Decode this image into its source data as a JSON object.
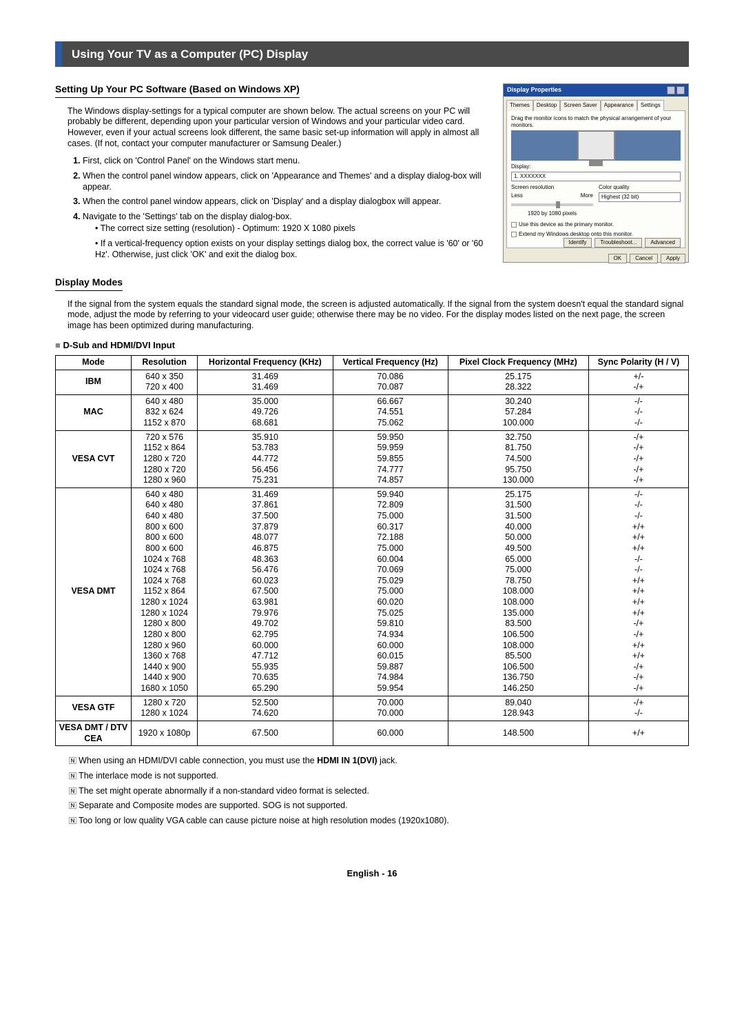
{
  "banner": "Using Your TV as a Computer (PC) Display",
  "section1": {
    "heading": "Setting Up Your PC Software (Based on Windows XP)",
    "intro": "The Windows display-settings for a typical computer are shown below. The actual screens on your PC will probably be different, depending upon your particular version of Windows and your particular video card. However, even if your actual screens look different, the same basic set-up information will apply in almost all cases. (If not, contact your computer manufacturer or Samsung Dealer.)",
    "steps": [
      "First, click on 'Control Panel' on the Windows start menu.",
      "When the control panel window appears, click on 'Appearance and Themes' and a display dialog-box will appear.",
      "When the control panel window appears, click on 'Display' and a display dialogbox will appear.",
      "Navigate to the 'Settings' tab on the display dialog-box."
    ],
    "sub_bullets": [
      "The correct size setting (resolution) - Optimum: 1920 X 1080 pixels",
      "If a vertical-frequency option exists on your display settings dialog box, the correct value is '60' or '60 Hz'. Otherwise, just click 'OK' and exit the dialog box."
    ]
  },
  "dialog": {
    "title": "Display Properties",
    "tabs": [
      "Themes",
      "Desktop",
      "Screen Saver",
      "Appearance",
      "Settings"
    ],
    "active_tab": "Settings",
    "drag_text": "Drag the monitor icons to match the physical arrangement of your monitors.",
    "display_label": "Display:",
    "display_val": "1. XXXXXXX",
    "res_label": "Screen resolution",
    "res_less": "Less",
    "res_more": "More",
    "res_val": "1920 by 1080 pixels",
    "quality_label": "Color quality",
    "quality_val": "Highest (32 bit)",
    "cb1": "Use this device as the primary monitor.",
    "cb2": "Extend my Windows desktop onto this monitor.",
    "btn_identify": "Identify",
    "btn_trouble": "Troubleshoot...",
    "btn_adv": "Advanced",
    "btn_ok": "OK",
    "btn_cancel": "Cancel",
    "btn_apply": "Apply"
  },
  "section2": {
    "heading": "Display Modes",
    "intro": "If the signal from the system equals the standard signal mode, the screen is adjusted automatically. If the signal from the system doesn't equal the standard signal mode, adjust the mode by referring to your videocard user guide; otherwise there may be no video. For the display modes listed on the next page, the screen image has been optimized during manufacturing.",
    "sub_head": "D-Sub and HDMI/DVI Input"
  },
  "table": {
    "headers": {
      "mode": "Mode",
      "res": "Resolution",
      "hfreq": "Horizontal Frequency (KHz)",
      "vfreq": "Vertical Frequency (Hz)",
      "pclk": "Pixel Clock Frequency (MHz)",
      "sync": "Sync Polarity (H / V)"
    },
    "rows": [
      {
        "mode": "IBM",
        "res": [
          "640 x 350",
          "720 x 400"
        ],
        "h": [
          "31.469",
          "31.469"
        ],
        "v": [
          "70.086",
          "70.087"
        ],
        "p": [
          "25.175",
          "28.322"
        ],
        "s": [
          "+/-",
          "-/+"
        ]
      },
      {
        "mode": "MAC",
        "res": [
          "640 x 480",
          "832 x 624",
          "1152 x 870"
        ],
        "h": [
          "35.000",
          "49.726",
          "68.681"
        ],
        "v": [
          "66.667",
          "74.551",
          "75.062"
        ],
        "p": [
          "30.240",
          "57.284",
          "100.000"
        ],
        "s": [
          "-/-",
          "-/-",
          "-/-"
        ]
      },
      {
        "mode": "VESA CVT",
        "res": [
          "720 x 576",
          "1152 x 864",
          "1280 x 720",
          "1280 x 720",
          "1280 x 960"
        ],
        "h": [
          "35.910",
          "53.783",
          "44.772",
          "56.456",
          "75.231"
        ],
        "v": [
          "59.950",
          "59.959",
          "59.855",
          "74.777",
          "74.857"
        ],
        "p": [
          "32.750",
          "81.750",
          "74.500",
          "95.750",
          "130.000"
        ],
        "s": [
          "-/+",
          "-/+",
          "-/+",
          "-/+",
          "-/+"
        ]
      },
      {
        "mode": "VESA DMT",
        "res": [
          "640 x 480",
          "640 x 480",
          "640 x 480",
          "800 x 600",
          "800 x 600",
          "800 x 600",
          "1024 x 768",
          "1024 x 768",
          "1024 x 768",
          "1152 x 864",
          "1280 x 1024",
          "1280 x 1024",
          "1280 x 800",
          "1280 x 800",
          "1280 x 960",
          "1360 x 768",
          "1440 x 900",
          "1440 x 900",
          "1680 x 1050"
        ],
        "h": [
          "31.469",
          "37.861",
          "37.500",
          "37.879",
          "48.077",
          "46.875",
          "48.363",
          "56.476",
          "60.023",
          "67.500",
          "63.981",
          "79.976",
          "49.702",
          "62.795",
          "60.000",
          "47.712",
          "55.935",
          "70.635",
          "65.290"
        ],
        "v": [
          "59.940",
          "72.809",
          "75.000",
          "60.317",
          "72.188",
          "75.000",
          "60.004",
          "70.069",
          "75.029",
          "75.000",
          "60.020",
          "75.025",
          "59.810",
          "74.934",
          "60.000",
          "60.015",
          "59.887",
          "74.984",
          "59.954"
        ],
        "p": [
          "25.175",
          "31.500",
          "31.500",
          "40.000",
          "50.000",
          "49.500",
          "65.000",
          "75.000",
          "78.750",
          "108.000",
          "108.000",
          "135.000",
          "83.500",
          "106.500",
          "108.000",
          "85.500",
          "106.500",
          "136.750",
          "146.250"
        ],
        "s": [
          "-/-",
          "-/-",
          "-/-",
          "+/+",
          "+/+",
          "+/+",
          "-/-",
          "-/-",
          "+/+",
          "+/+",
          "+/+",
          "+/+",
          "-/+",
          "-/+",
          "+/+",
          "+/+",
          "-/+",
          "-/+",
          "-/+"
        ]
      },
      {
        "mode": "VESA GTF",
        "res": [
          "1280 x 720",
          "1280 x 1024"
        ],
        "h": [
          "52.500",
          "74.620"
        ],
        "v": [
          "70.000",
          "70.000"
        ],
        "p": [
          "89.040",
          "128.943"
        ],
        "s": [
          "-/+",
          "-/-"
        ]
      },
      {
        "mode": "VESA DMT / DTV CEA",
        "res": [
          "1920 x 1080p"
        ],
        "h": [
          "67.500"
        ],
        "v": [
          "60.000"
        ],
        "p": [
          "148.500"
        ],
        "s": [
          "+/+"
        ]
      }
    ]
  },
  "notes": [
    {
      "pre": "When using an HDMI/DVI cable connection, you must use the ",
      "strong": "HDMI IN 1(DVI)",
      "post": " jack."
    },
    {
      "pre": "The interlace mode is not supported.",
      "strong": "",
      "post": ""
    },
    {
      "pre": "The set might operate abnormally if a non-standard video format is selected.",
      "strong": "",
      "post": ""
    },
    {
      "pre": "Separate and Composite modes are supported. SOG is not supported.",
      "strong": "",
      "post": ""
    },
    {
      "pre": "Too long or low quality VGA cable can cause picture noise at high resolution modes (1920x1080).",
      "strong": "",
      "post": ""
    }
  ],
  "footer": "English - 16"
}
